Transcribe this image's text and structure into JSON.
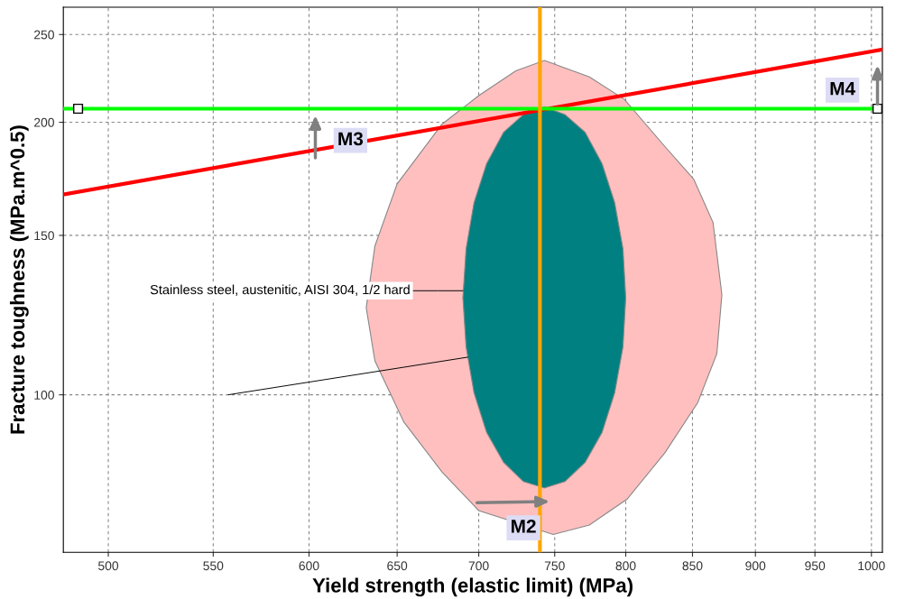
{
  "chart_data": {
    "type": "area",
    "xlabel": "Yield strength (elastic limit) (MPa)",
    "ylabel": "Fracture toughness (MPa.m^0.5)",
    "log": "xy",
    "grid": true,
    "xlim": [
      480,
      1010
    ],
    "ylim": [
      67,
      268
    ],
    "xticks": [
      500,
      550,
      600,
      650,
      700,
      750,
      800,
      850,
      900,
      950,
      1000
    ],
    "yticks": [
      100,
      150,
      200,
      250
    ],
    "series": [
      {
        "color": "#ffbfbf",
        "x": [
          743,
          774,
          799,
          829,
          851,
          866,
          873,
          869,
          854,
          829,
          801,
          774,
          749,
          700,
          677,
          654,
          637,
          632,
          637,
          650,
          677,
          700,
          724
        ],
        "values": [
          234,
          224.5,
          212,
          188,
          173,
          155,
          129,
          111,
          98,
          86.3,
          76.7,
          71.8,
          70.1,
          74.5,
          82.2,
          93.3,
          109,
          124.8,
          146,
          171,
          199,
          214,
          228
        ]
      },
      {
        "color": "#008080",
        "x": [
          800,
          798,
          792,
          783,
          771,
          757,
          743,
          729,
          716,
          705,
          697,
          692,
          690,
          692,
          697,
          705,
          716,
          729,
          743,
          757,
          771,
          783,
          792,
          798
        ],
        "values": [
          128,
          145,
          163,
          180,
          195,
          204,
          208,
          204,
          195,
          180,
          163,
          145,
          128,
          113,
          100.5,
          90.9,
          84.2,
          80.2,
          78.9,
          80.2,
          84.2,
          90.9,
          100.5,
          113
        ]
      },
      {
        "type": "line",
        "color": "#ff0000",
        "x": [
          480,
          1010
        ],
        "values": [
          166.4,
          240.6
        ]
      }
    ],
    "ref_lines": [
      {
        "axis": "y",
        "value": 207,
        "color": "#00ff00"
      },
      {
        "axis": "x",
        "value": 740,
        "color": "#ffa500"
      }
    ],
    "annotations": [
      {
        "text": "Stainless steel, austenitic, AISI 304, 1/2 hard",
        "x": 690,
        "y": 130.3
      },
      {
        "text": "M3",
        "x": 623,
        "y": 191
      },
      {
        "text": "M4",
        "x": 974,
        "y": 217
      },
      {
        "text": "M2",
        "x": 729,
        "y": 71.3
      }
    ]
  }
}
